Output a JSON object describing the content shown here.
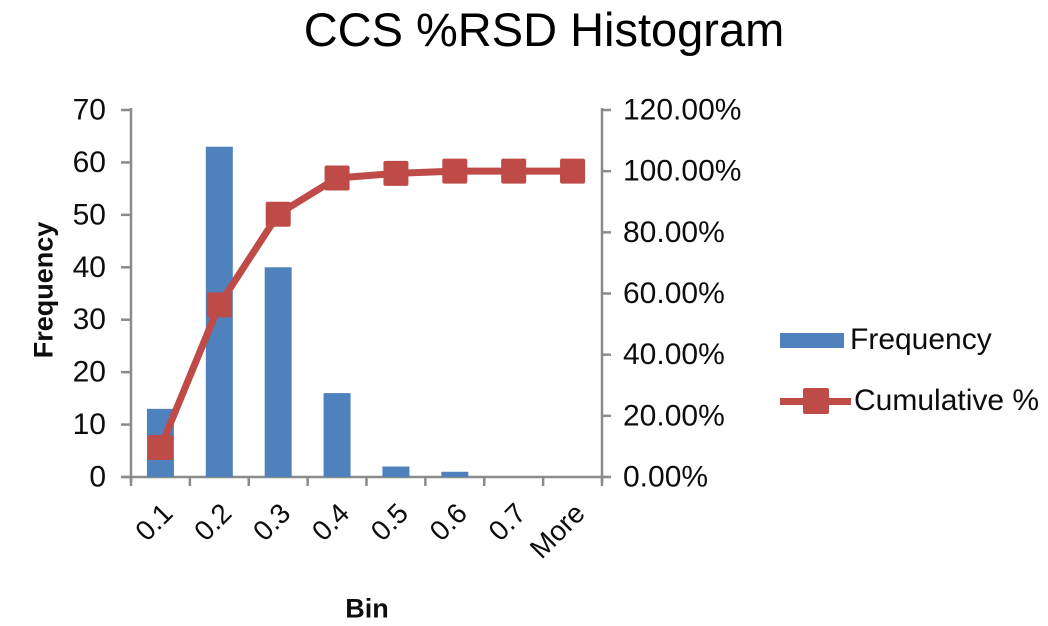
{
  "chart_data": {
    "type": "bar",
    "subtype": "pareto-histogram-with-cumulative-line",
    "title": "CCS %RSD Histogram",
    "xlabel": "Bin",
    "ylabel": "Frequency",
    "categories": [
      "0.1",
      "0.2",
      "0.3",
      "0.4",
      "0.5",
      "0.6",
      "0.7",
      "More"
    ],
    "series": [
      {
        "name": "Frequency",
        "type": "bar",
        "axis": "left",
        "color": "#4F81BD",
        "values": [
          13,
          63,
          40,
          16,
          2,
          1,
          0,
          0
        ]
      },
      {
        "name": "Cumulative %",
        "type": "line",
        "axis": "right",
        "color": "#BE4B48",
        "marker": "square",
        "values": [
          9.63,
          56.3,
          85.93,
          97.78,
          99.26,
          100,
          100,
          100
        ]
      }
    ],
    "y_axis_left": {
      "min": 0,
      "max": 70,
      "tick_labels": [
        "0",
        "10",
        "20",
        "30",
        "40",
        "50",
        "60",
        "70"
      ]
    },
    "y_axis_right": {
      "min": 0,
      "max": 120,
      "tick_labels": [
        "0.00%",
        "20.00%",
        "40.00%",
        "60.00%",
        "80.00%",
        "100.00%",
        "120.00%"
      ]
    },
    "grid": false,
    "legend_position": "right",
    "axis_color": "#8B8B8B",
    "text_color": "#0d0d0d"
  }
}
